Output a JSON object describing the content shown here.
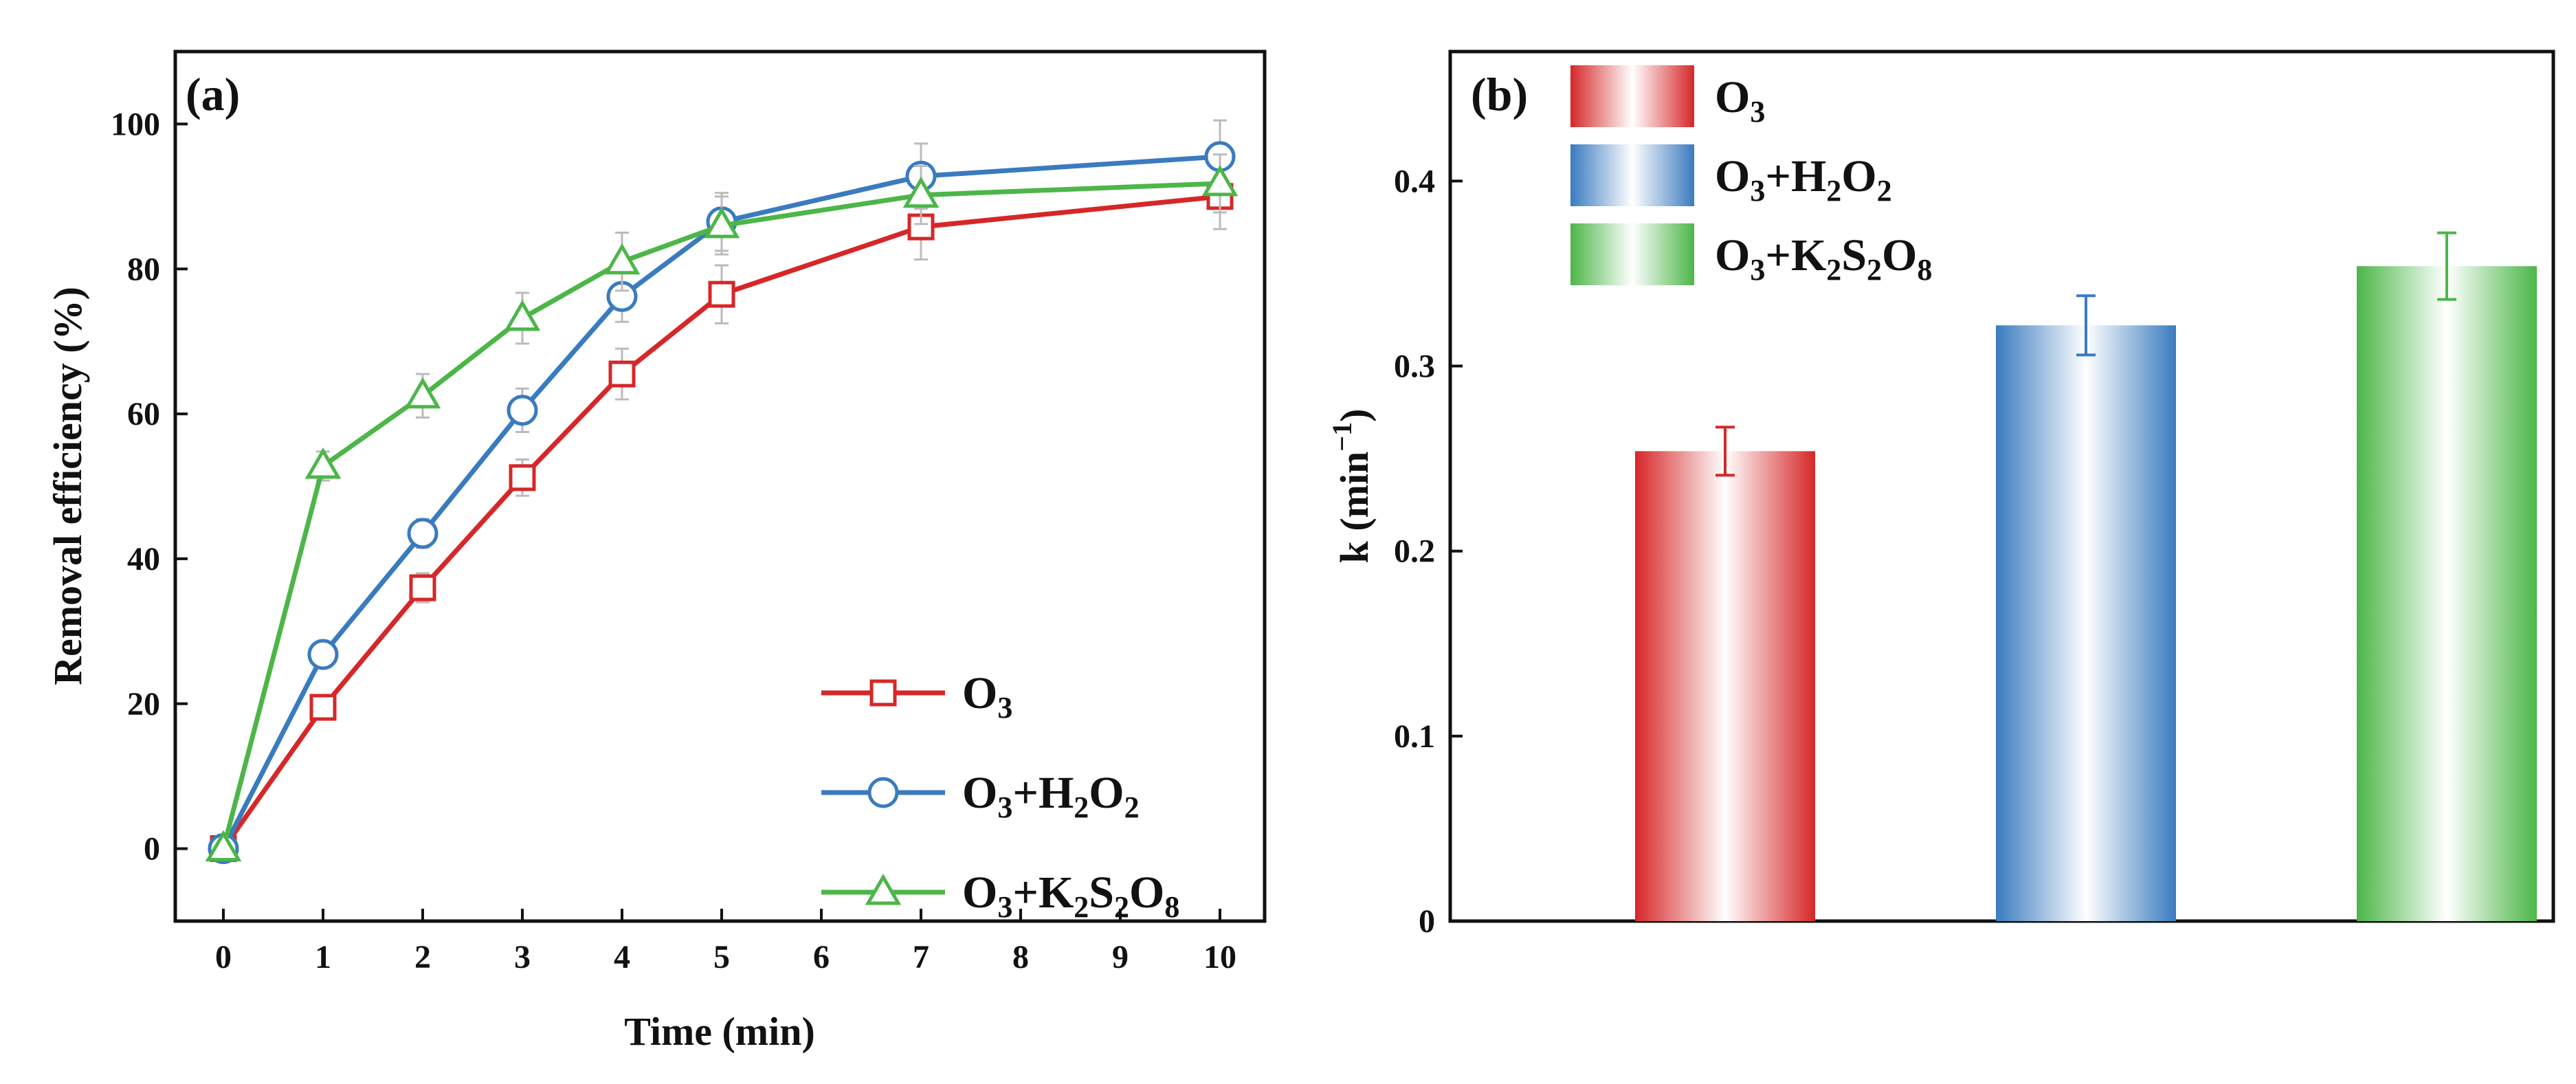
{
  "chart_data": [
    {
      "panel": "(a)",
      "type": "line",
      "xlabel": "Time (min)",
      "ylabel": "Removal efficiency (%)",
      "x": [
        0,
        1,
        2,
        3,
        4,
        5,
        7,
        10
      ],
      "x_tick_labels": [
        "0",
        "1",
        "2",
        "3",
        "4",
        "5",
        "6",
        "7",
        "8",
        "9",
        "10"
      ],
      "y_tick_labels": [
        "0",
        "20",
        "40",
        "60",
        "80",
        "100"
      ],
      "ylim": [
        -10,
        110
      ],
      "legend_position": "bottom-right",
      "series": [
        {
          "name": "O3",
          "label": "O",
          "parts": [
            [
              "O",
              ""
            ],
            [
              "3",
              "sub"
            ]
          ],
          "color": "#d62728",
          "marker": "square",
          "values": [
            0,
            19.5,
            36,
            51.2,
            65.5,
            76.5,
            85.8,
            90
          ],
          "errors": [
            0,
            1.5,
            2,
            2.5,
            3.5,
            4,
            4.5,
            4.5
          ]
        },
        {
          "name": "O3+H2O2",
          "parts": [
            [
              "O",
              ""
            ],
            [
              "3",
              "sub"
            ],
            [
              "+H",
              ""
            ],
            [
              "2",
              "sub"
            ],
            [
              "O",
              ""
            ],
            [
              "2",
              "sub"
            ]
          ],
          "color": "#3a7bbf",
          "marker": "circle",
          "values": [
            0,
            26.8,
            43.5,
            60.5,
            76.2,
            86.5,
            92.8,
            95.5
          ],
          "errors": [
            0,
            1.5,
            2,
            3,
            3.5,
            4,
            4.5,
            5
          ]
        },
        {
          "name": "O3+K2S2O8",
          "parts": [
            [
              "O",
              ""
            ],
            [
              "3",
              "sub"
            ],
            [
              "+K",
              ""
            ],
            [
              "2",
              "sub"
            ],
            [
              "S",
              ""
            ],
            [
              "2",
              "sub"
            ],
            [
              "O",
              ""
            ],
            [
              "8",
              "sub"
            ]
          ],
          "color": "#4cb648",
          "marker": "triangle",
          "values": [
            0,
            52.8,
            62.5,
            73.2,
            81,
            86,
            90.2,
            91.8
          ],
          "errors": [
            0,
            2,
            3,
            3.5,
            4,
            4,
            4,
            4
          ]
        }
      ]
    },
    {
      "panel": "(b)",
      "type": "bar",
      "ylabel": "k (min",
      "ylabel_sup": "−1",
      "ylabel_close": ")",
      "y_tick_labels": [
        "0",
        "0.1",
        "0.2",
        "0.3",
        "0.4"
      ],
      "ylim": [
        0,
        0.47
      ],
      "legend_position": "top-left",
      "categories": [
        "O3",
        "O3+H2O2",
        "O3+K2S2O8"
      ],
      "series": [
        {
          "name": "O3",
          "parts": [
            [
              "O",
              ""
            ],
            [
              "3",
              "sub"
            ]
          ],
          "color": "#d62728",
          "value": 0.254,
          "error": 0.013
        },
        {
          "name": "O3+H2O2",
          "parts": [
            [
              "O",
              ""
            ],
            [
              "3",
              "sub"
            ],
            [
              "+H",
              ""
            ],
            [
              "2",
              "sub"
            ],
            [
              "O",
              ""
            ],
            [
              "2",
              "sub"
            ]
          ],
          "color": "#3a7bbf",
          "value": 0.322,
          "error": 0.016
        },
        {
          "name": "O3+K2S2O8",
          "parts": [
            [
              "O",
              ""
            ],
            [
              "3",
              "sub"
            ],
            [
              "+K",
              ""
            ],
            [
              "2",
              "sub"
            ],
            [
              "S",
              ""
            ],
            [
              "2",
              "sub"
            ],
            [
              "O",
              ""
            ],
            [
              "8",
              "sub"
            ]
          ],
          "color": "#4cb648",
          "value": 0.354,
          "error": 0.018
        }
      ]
    }
  ]
}
